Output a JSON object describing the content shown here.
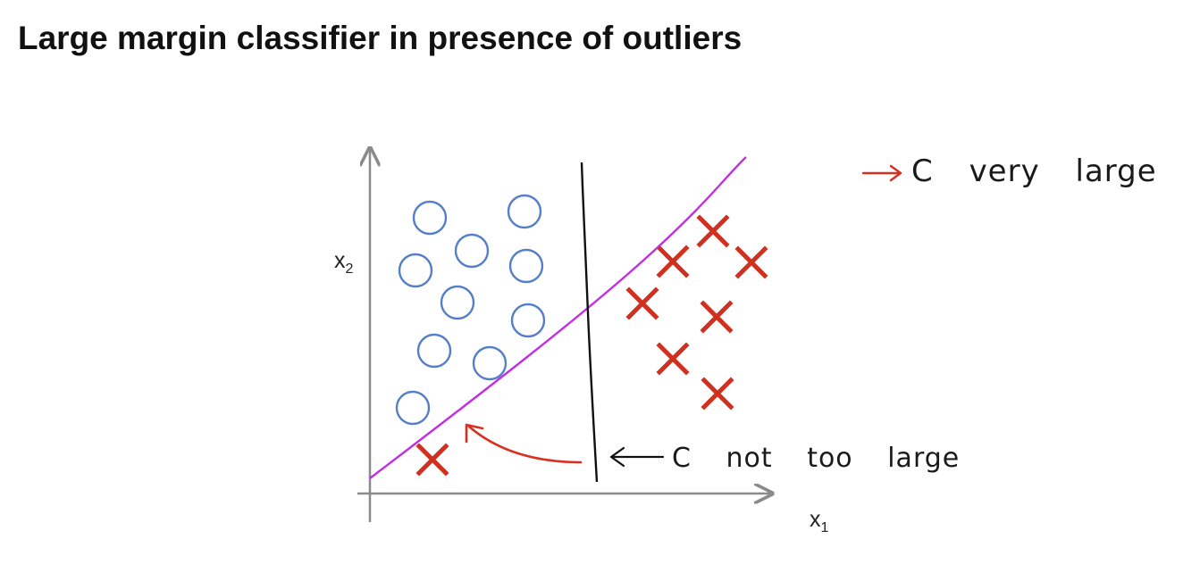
{
  "title": "Large margin classifier in presence of outliers",
  "axes": {
    "x_label": "x",
    "x_subscript": "1",
    "y_label": "x",
    "y_subscript": "2"
  },
  "annotations": {
    "c_very_large": [
      "C",
      "very",
      "large"
    ],
    "c_not_too_large": [
      "C",
      "not",
      "too",
      "large"
    ]
  },
  "colors": {
    "circle": "#5580c8",
    "cross": "#d03020",
    "boundary_c_very_large": "#c030e0",
    "boundary_c_not_too_large": "#111111",
    "annotation_arrow": "#d83020",
    "axis": "#8a8a8a"
  }
}
